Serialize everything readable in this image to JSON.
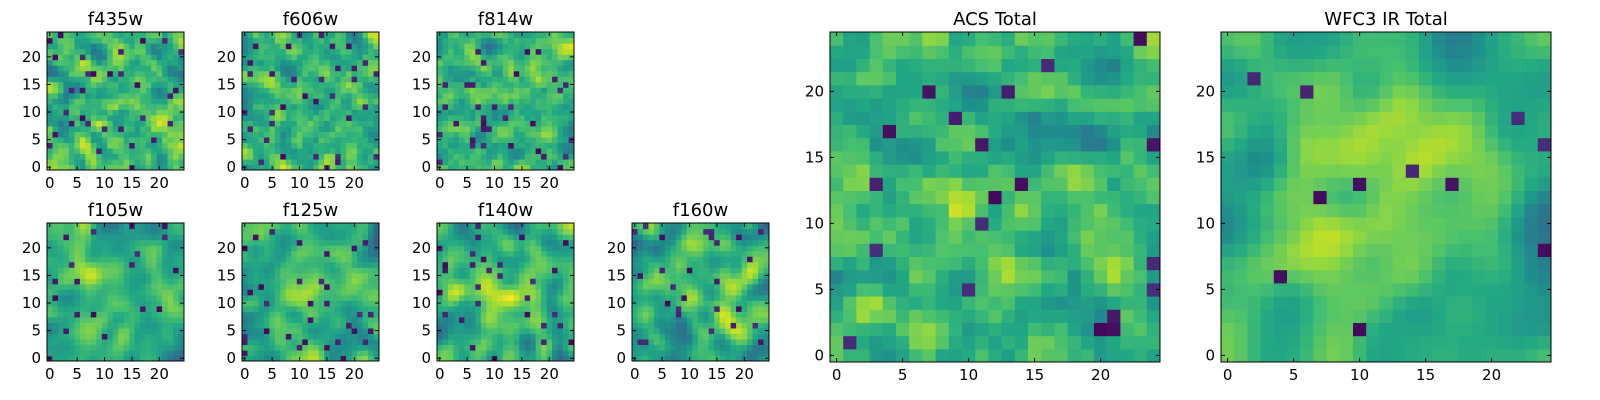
{
  "chart_data": [
    {
      "type": "heatmap",
      "title": "f435w",
      "xlim": [
        0,
        24
      ],
      "ylim": [
        0,
        24
      ],
      "xticks": [
        0,
        5,
        10,
        15,
        20
      ],
      "yticks": [
        0,
        5,
        10,
        15,
        20
      ],
      "colormap": "viridis",
      "vmin": 0,
      "vmax": 1,
      "grid": false,
      "seed": 11,
      "mean": 0.66,
      "spread": 0.18,
      "smooth": 0.15,
      "center": 0.0,
      "darkfrac": 0.05
    },
    {
      "type": "heatmap",
      "title": "f606w",
      "xlim": [
        0,
        24
      ],
      "ylim": [
        0,
        24
      ],
      "xticks": [
        0,
        5,
        10,
        15,
        20
      ],
      "yticks": [
        0,
        5,
        10,
        15,
        20
      ],
      "colormap": "viridis",
      "vmin": 0,
      "vmax": 1,
      "grid": false,
      "seed": 23,
      "mean": 0.68,
      "spread": 0.17,
      "smooth": 0.15,
      "center": 0.0,
      "darkfrac": 0.05
    },
    {
      "type": "heatmap",
      "title": "f814w",
      "xlim": [
        0,
        24
      ],
      "ylim": [
        0,
        24
      ],
      "xticks": [
        0,
        5,
        10,
        15,
        20
      ],
      "yticks": [
        0,
        5,
        10,
        15,
        20
      ],
      "colormap": "viridis",
      "vmin": 0,
      "vmax": 1,
      "grid": false,
      "seed": 37,
      "mean": 0.66,
      "spread": 0.18,
      "smooth": 0.15,
      "center": 0.0,
      "darkfrac": 0.05
    },
    {
      "type": "heatmap",
      "title": "f105w",
      "xlim": [
        0,
        24
      ],
      "ylim": [
        0,
        24
      ],
      "xticks": [
        0,
        5,
        10,
        15,
        20
      ],
      "yticks": [
        0,
        5,
        10,
        15,
        20
      ],
      "colormap": "viridis",
      "vmin": 0,
      "vmax": 1,
      "grid": false,
      "seed": 41,
      "mean": 0.6,
      "spread": 0.17,
      "smooth": 0.55,
      "center": 0.1,
      "darkfrac": 0.04
    },
    {
      "type": "heatmap",
      "title": "f125w",
      "xlim": [
        0,
        24
      ],
      "ylim": [
        0,
        24
      ],
      "xticks": [
        0,
        5,
        10,
        15,
        20
      ],
      "yticks": [
        0,
        5,
        10,
        15,
        20
      ],
      "colormap": "viridis",
      "vmin": 0,
      "vmax": 1,
      "grid": false,
      "seed": 53,
      "mean": 0.6,
      "spread": 0.18,
      "smooth": 0.55,
      "center": 0.14,
      "darkfrac": 0.04
    },
    {
      "type": "heatmap",
      "title": "f140w",
      "xlim": [
        0,
        24
      ],
      "ylim": [
        0,
        24
      ],
      "xticks": [
        0,
        5,
        10,
        15,
        20
      ],
      "yticks": [
        0,
        5,
        10,
        15,
        20
      ],
      "colormap": "viridis",
      "vmin": 0,
      "vmax": 1,
      "grid": false,
      "seed": 67,
      "mean": 0.62,
      "spread": 0.18,
      "smooth": 0.55,
      "center": 0.14,
      "darkfrac": 0.04
    },
    {
      "type": "heatmap",
      "title": "f160w",
      "xlim": [
        0,
        24
      ],
      "ylim": [
        0,
        24
      ],
      "xticks": [
        0,
        5,
        10,
        15,
        20
      ],
      "yticks": [
        0,
        5,
        10,
        15,
        20
      ],
      "colormap": "viridis",
      "vmin": 0,
      "vmax": 1,
      "grid": false,
      "seed": 79,
      "mean": 0.6,
      "spread": 0.18,
      "smooth": 0.55,
      "center": 0.14,
      "darkfrac": 0.04
    },
    {
      "type": "heatmap",
      "title": "ACS Total",
      "xlim": [
        0,
        24
      ],
      "ylim": [
        0,
        24
      ],
      "xticks": [
        0,
        5,
        10,
        15,
        20
      ],
      "yticks": [
        0,
        5,
        10,
        15,
        20
      ],
      "colormap": "viridis",
      "vmin": 0,
      "vmax": 1,
      "grid": false,
      "seed": 97,
      "mean": 0.64,
      "spread": 0.15,
      "smooth": 0.25,
      "center": 0.06,
      "darkfrac": 0.03
    },
    {
      "type": "heatmap",
      "title": "WFC3 IR Total",
      "xlim": [
        0,
        24
      ],
      "ylim": [
        0,
        24
      ],
      "xticks": [
        0,
        5,
        10,
        15,
        20
      ],
      "yticks": [
        0,
        5,
        10,
        15,
        20
      ],
      "colormap": "viridis",
      "vmin": 0,
      "vmax": 1,
      "grid": false,
      "seed": 113,
      "mean": 0.58,
      "spread": 0.13,
      "smooth": 0.7,
      "center": 0.24,
      "darkfrac": 0.025
    }
  ]
}
